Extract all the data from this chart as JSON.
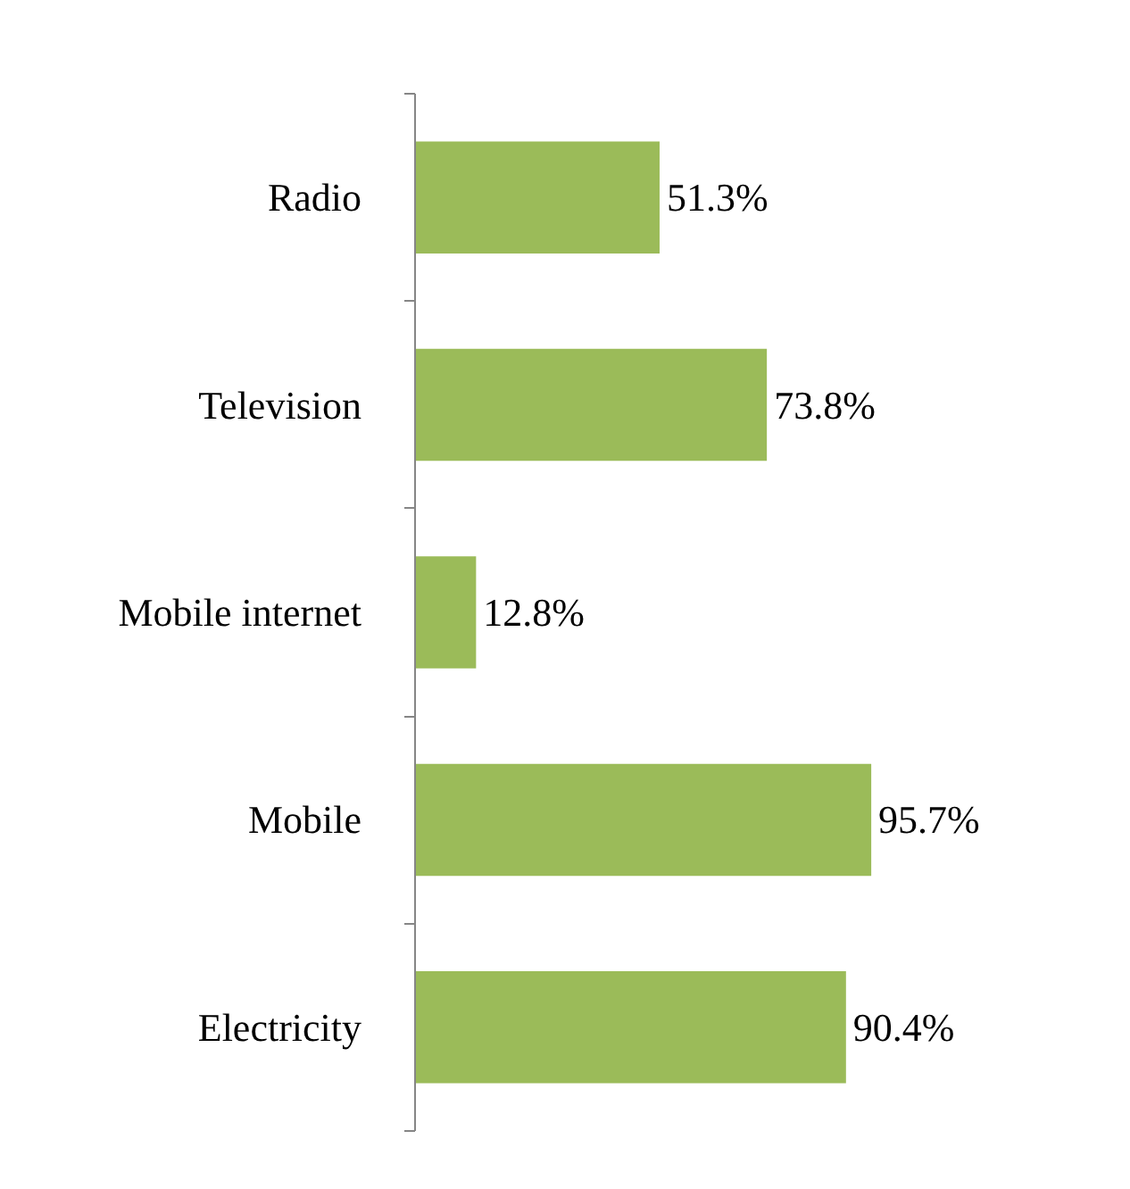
{
  "chart_data": {
    "type": "bar",
    "orientation": "horizontal",
    "categories": [
      "Radio",
      "Television",
      "Mobile internet",
      "Mobile",
      "Electricity"
    ],
    "values": [
      51.3,
      73.8,
      12.8,
      95.7,
      90.4
    ],
    "value_labels": [
      "51.3%",
      "73.8%",
      "12.8%",
      "95.7%",
      "90.4%"
    ],
    "color": "#9bbb59",
    "grid": false
  }
}
